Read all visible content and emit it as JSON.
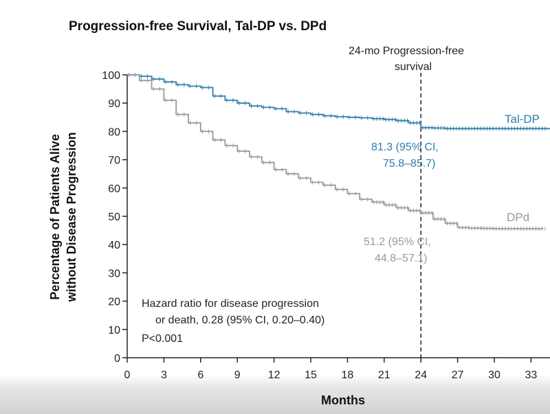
{
  "chart_data": {
    "type": "line",
    "title": "Progression-free Survival, Tal-DP vs. DPd",
    "xlabel": "Months",
    "ylabel_lines": [
      "Percentage of Patients Alive",
      "without Disease Progression"
    ],
    "xlim": [
      0,
      35
    ],
    "ylim": [
      0,
      100
    ],
    "x_ticks": [
      0,
      3,
      6,
      9,
      12,
      15,
      18,
      21,
      24,
      27,
      30,
      33
    ],
    "y_ticks": [
      0,
      10,
      20,
      30,
      40,
      50,
      60,
      70,
      80,
      90,
      100
    ],
    "grid": false,
    "reference_line": {
      "x": 24,
      "label_lines": [
        "24-mo Progression-free",
        "survival"
      ]
    },
    "series": [
      {
        "name": "Tal-DP",
        "color": "#2e7eab",
        "x": [
          0,
          1,
          2,
          3,
          4,
          5,
          6,
          7,
          8,
          9,
          10,
          11,
          12,
          13,
          14,
          15,
          16,
          17,
          18,
          19,
          20,
          21,
          22,
          23,
          24,
          25,
          26,
          27,
          28,
          29,
          30,
          31,
          32,
          33,
          34,
          35
        ],
        "y": [
          100,
          99.5,
          98.5,
          97.5,
          96.5,
          96,
          95.5,
          92.5,
          91,
          90,
          89,
          88.5,
          88,
          87,
          86.5,
          86,
          85.5,
          85.2,
          85,
          84.8,
          84.5,
          84.2,
          83.8,
          83,
          81.3,
          81.2,
          81,
          81,
          81,
          81,
          81,
          81,
          81,
          81,
          81,
          81
        ],
        "annotation_lines": [
          "81.3 (95% CI,",
          "75.8–85.7)"
        ]
      },
      {
        "name": "DPd",
        "color": "#999999",
        "x": [
          0,
          1,
          2,
          3,
          4,
          5,
          6,
          7,
          8,
          9,
          10,
          11,
          12,
          13,
          14,
          15,
          16,
          17,
          18,
          19,
          20,
          21,
          22,
          23,
          24,
          25,
          26,
          27,
          28,
          29,
          30,
          31,
          32,
          33,
          34
        ],
        "y": [
          100,
          98,
          95,
          91,
          86,
          83,
          80,
          77,
          75,
          73,
          71,
          69,
          66.5,
          65,
          63.5,
          62,
          61,
          59.5,
          58,
          56,
          55,
          54,
          53,
          52,
          51.2,
          49,
          47.5,
          46,
          45.8,
          45.7,
          45.6,
          45.6,
          45.6,
          45.6,
          45.6
        ],
        "annotation_lines": [
          "51.2 (95% CI,",
          "44.8–57.1)"
        ]
      }
    ],
    "notes": {
      "hr_lines": [
        "Hazard ratio for disease progression",
        "or death, 0.28 (95% CI, 0.20–0.40)"
      ],
      "p_value": "P<0.001"
    }
  }
}
